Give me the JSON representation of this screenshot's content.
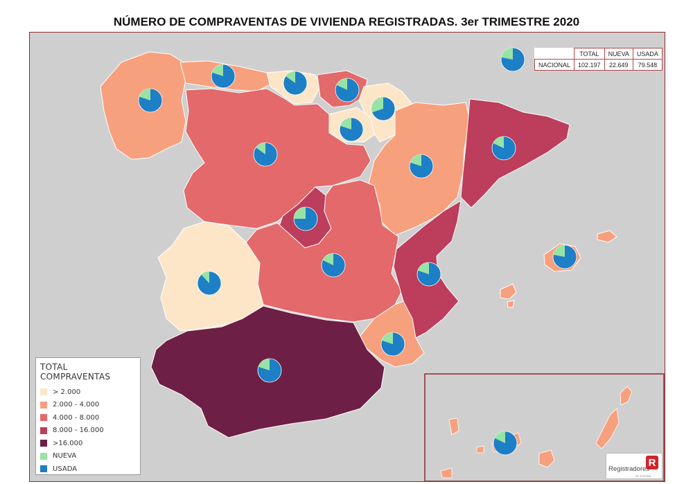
{
  "title": "NÚMERO DE COMPRAVENTAS DE VIVIENDA REGISTRADAS. 3er TRIMESTRE 2020",
  "national_table": {
    "headers": [
      "TOTAL",
      "NUEVA",
      "USADA"
    ],
    "row_label": "NACIONAL",
    "values": [
      "102.197",
      "22.649",
      "79.548"
    ]
  },
  "legend": {
    "title": "TOTAL COMPRAVENTAS",
    "items": [
      {
        "label": "> 2.000",
        "color": "#fde6c8"
      },
      {
        "label": "2.000 - 4.000",
        "color": "#f7a07e"
      },
      {
        "label": "4.000 - 8.000",
        "color": "#e3696a"
      },
      {
        "label": "8.000 - 16.000",
        "color": "#bd3d5c"
      },
      {
        "label": ">16.000",
        "color": "#6e1f45"
      },
      {
        "label": "NUEVA",
        "color": "#97e3a6"
      },
      {
        "label": "USADA",
        "color": "#1d7fc5"
      }
    ]
  },
  "logo": {
    "text": "Registradores",
    "sub": "DE ESPAÑA",
    "mark": "R"
  },
  "colors": {
    "background": "#cfcfcf",
    "frame": "#8b2a2a",
    "nueva": "#97e3a6",
    "usada": "#1d7fc5"
  },
  "regions": [
    {
      "name": "Galicia",
      "class": "2.000 - 4.000",
      "nueva_share": 0.2
    },
    {
      "name": "Asturias",
      "class": "2.000 - 4.000",
      "nueva_share": 0.2
    },
    {
      "name": "Cantabria",
      "class": "> 2.000",
      "nueva_share": 0.15
    },
    {
      "name": "País Vasco",
      "class": "4.000 - 8.000",
      "nueva_share": 0.18
    },
    {
      "name": "Navarra",
      "class": "> 2.000",
      "nueva_share": 0.3
    },
    {
      "name": "La Rioja",
      "class": "> 2.000",
      "nueva_share": 0.2
    },
    {
      "name": "Castilla y León",
      "class": "4.000 - 8.000",
      "nueva_share": 0.15
    },
    {
      "name": "Aragón",
      "class": "2.000 - 4.000",
      "nueva_share": 0.2
    },
    {
      "name": "Cataluña",
      "class": "8.000 - 16.000",
      "nueva_share": 0.18
    },
    {
      "name": "Madrid",
      "class": "8.000 - 16.000",
      "nueva_share": 0.25
    },
    {
      "name": "Castilla-La Mancha",
      "class": "4.000 - 8.000",
      "nueva_share": 0.18
    },
    {
      "name": "Extremadura",
      "class": "> 2.000",
      "nueva_share": 0.12
    },
    {
      "name": "Comunidad Valenciana",
      "class": "8.000 - 16.000",
      "nueva_share": 0.2
    },
    {
      "name": "Región de Murcia",
      "class": "2.000 - 4.000",
      "nueva_share": 0.2
    },
    {
      "name": "Andalucía",
      "class": ">16.000",
      "nueva_share": 0.2
    },
    {
      "name": "Illes Balears",
      "class": "2.000 - 4.000",
      "nueva_share": 0.22
    },
    {
      "name": "Canarias",
      "class": "2.000 - 4.000",
      "nueva_share": 0.18
    },
    {
      "name": "Nacional",
      "class": "",
      "nueva_share": 0.22
    }
  ]
}
